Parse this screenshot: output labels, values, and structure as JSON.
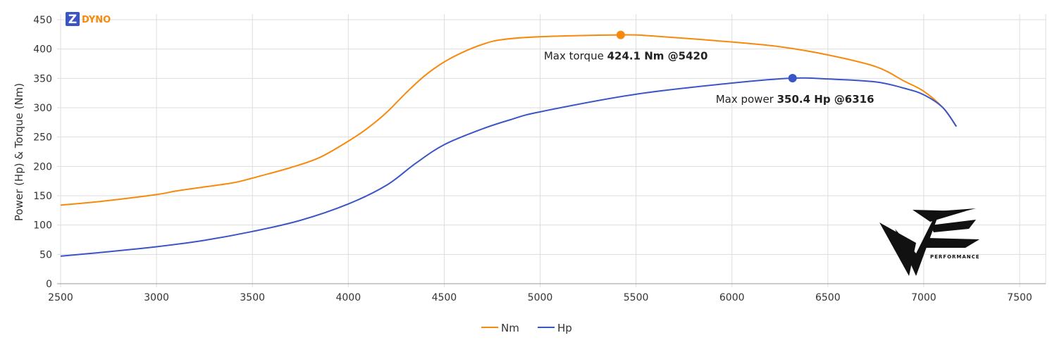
{
  "logo": {
    "letter": "Z",
    "text": "DYNO"
  },
  "watermark": {
    "text": "PERFORMANCE"
  },
  "chart_data": {
    "type": "line",
    "xlabel": "",
    "ylabel": "Power (Hp) & Torque (Nm)",
    "xlim": [
      2500,
      7650
    ],
    "ylim": [
      0,
      460
    ],
    "xticks": [
      2500,
      3000,
      3500,
      4000,
      4500,
      5000,
      5500,
      6000,
      6500,
      7000,
      7500
    ],
    "yticks": [
      0,
      50,
      100,
      150,
      200,
      250,
      300,
      350,
      400,
      450
    ],
    "grid": true,
    "legend_position": "bottom",
    "series": [
      {
        "name": "Nm",
        "color": "#f7890c",
        "x": [
          2500,
          2700,
          3000,
          3100,
          3250,
          3400,
          3500,
          3700,
          3850,
          4000,
          4100,
          4200,
          4300,
          4400,
          4500,
          4600,
          4700,
          4800,
          5000,
          5420,
          5600,
          6000,
          6250,
          6500,
          6750,
          6900,
          7000,
          7100,
          7170
        ],
        "y": [
          134,
          140,
          152,
          158,
          165,
          172,
          180,
          198,
          215,
          243,
          265,
          292,
          325,
          355,
          378,
          395,
          408,
          416,
          421,
          424.1,
          422,
          412,
          404,
          390,
          370,
          345,
          328,
          300,
          268
        ]
      },
      {
        "name": "Hp",
        "color": "#3a55c6",
        "x": [
          2500,
          2700,
          3000,
          3250,
          3500,
          3750,
          4000,
          4200,
          4350,
          4500,
          4700,
          4850,
          5000,
          5500,
          6000,
          6316,
          6500,
          6750,
          6900,
          7000,
          7100,
          7170
        ],
        "y": [
          47,
          53,
          63,
          74,
          89,
          108,
          136,
          168,
          205,
          237,
          264,
          280,
          293,
          323,
          342,
          350.4,
          349,
          344,
          333,
          322,
          300,
          268
        ]
      }
    ],
    "annotations": [
      {
        "series": "Nm",
        "x": 5420,
        "y": 424.1,
        "prefix": "Max torque ",
        "value": "424.1 Nm @5420"
      },
      {
        "series": "Hp",
        "x": 6316,
        "y": 350.4,
        "prefix": "Max power ",
        "value": "350.4 Hp @6316"
      }
    ]
  }
}
